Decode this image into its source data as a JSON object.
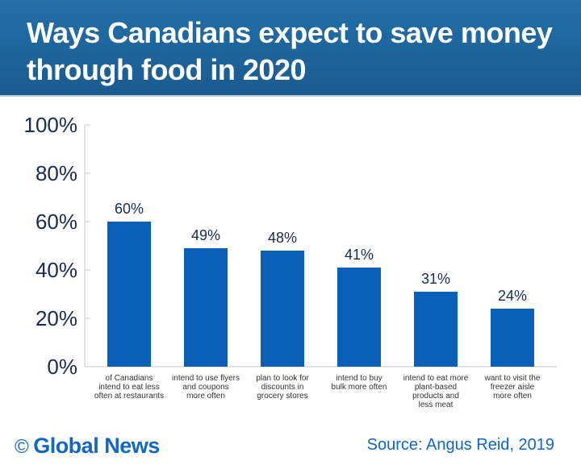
{
  "title": "Ways Canadians expect to save money through food in 2020",
  "chart_data": {
    "type": "bar",
    "categories": [
      [
        "of Canadians",
        "intend to eat less",
        "often at restaurants"
      ],
      [
        "intend to use flyers",
        "and coupons",
        "more often"
      ],
      [
        "plan to look for",
        "discounts in",
        "grocery stores"
      ],
      [
        "intend to buy",
        "bulk more often"
      ],
      [
        "intend to eat more",
        "plant-based",
        "products and",
        "less meat"
      ],
      [
        "want to visit the",
        "freezer aisle",
        "more often"
      ]
    ],
    "values": [
      60,
      49,
      48,
      41,
      31,
      24
    ],
    "data_labels": [
      "60%",
      "49%",
      "48%",
      "41%",
      "31%",
      "24%"
    ],
    "yticks": [
      "0%",
      "20%",
      "40%",
      "60%",
      "80%",
      "100%"
    ],
    "ylim": [
      0,
      100
    ],
    "grid": false,
    "bar_color": "#0a5fb8"
  },
  "footer": {
    "logo_symbol": "©",
    "logo": "Global News",
    "source": "Source: Angus Reid, 2019"
  }
}
